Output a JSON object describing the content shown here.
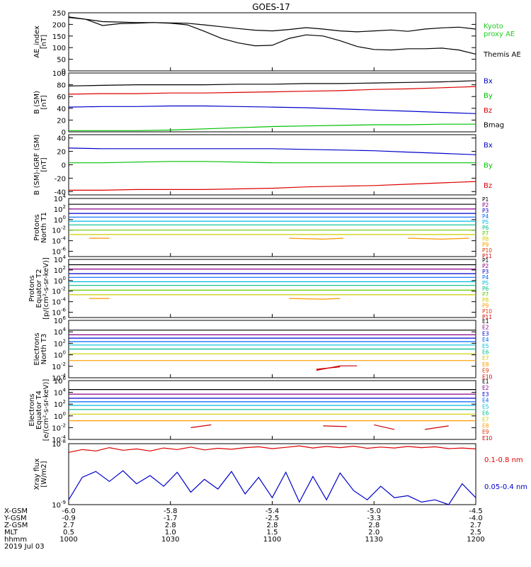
{
  "title": "GOES-17",
  "colors": {
    "black": "#000000",
    "red": "#dd0000",
    "green": "#00c000",
    "blue": "#0000cc",
    "aeKyoto": "#22cc22",
    "xrayLong": "#dd0000",
    "xrayShort": "#0000cc"
  },
  "chart_data": [
    {
      "type": "line",
      "ylabel_lines": [
        "AE_index",
        "[nT]"
      ],
      "ylim": [
        0,
        250
      ],
      "yticks": [
        "0",
        "50",
        "100",
        "150",
        "200",
        "250"
      ],
      "legend": [
        "Kyoto\nproxy AE",
        "Themis AE"
      ],
      "legend_colors": [
        "#22cc22",
        "#000000"
      ],
      "x": [
        1000,
        1005,
        1010,
        1015,
        1020,
        1025,
        1030,
        1035,
        1040,
        1045,
        1050,
        1055,
        1100,
        1105,
        1110,
        1115,
        1120,
        1125,
        1130,
        1135,
        1140,
        1145,
        1150,
        1155,
        1200
      ],
      "series": [
        {
          "name": "Kyoto proxy AE",
          "values": [
            230,
            222,
            195,
            203,
            205,
            208,
            205,
            198,
            170,
            140,
            120,
            108,
            110,
            140,
            155,
            150,
            130,
            105,
            92,
            90,
            95,
            95,
            98,
            90,
            72
          ]
        },
        {
          "name": "Themis AE",
          "values": [
            232,
            222,
            212,
            210,
            208,
            208,
            206,
            205,
            198,
            190,
            182,
            175,
            172,
            178,
            186,
            180,
            172,
            168,
            172,
            176,
            170,
            180,
            185,
            188,
            180
          ]
        }
      ]
    },
    {
      "type": "line",
      "ylabel_lines": [
        "B (SM)",
        "[nT]"
      ],
      "ylim": [
        0,
        100
      ],
      "yticks": [
        "0",
        "20",
        "40",
        "60",
        "80",
        "100"
      ],
      "legend": [
        "Bx",
        "By",
        "Bz",
        "Bmag"
      ],
      "legend_colors": [
        "#0000cc",
        "#00c000",
        "#dd0000",
        "#000000"
      ],
      "x": [
        1000,
        1010,
        1020,
        1030,
        1040,
        1050,
        1100,
        1110,
        1120,
        1130,
        1140,
        1150,
        1200
      ],
      "series": [
        {
          "name": "Bmag",
          "values": [
            78,
            79,
            80,
            80,
            80,
            81,
            81,
            82,
            82,
            83,
            84,
            85,
            87
          ]
        },
        {
          "name": "Bz",
          "values": [
            64,
            65,
            65,
            66,
            66,
            67,
            68,
            69,
            70,
            72,
            73,
            75,
            77
          ]
        },
        {
          "name": "Bx",
          "values": [
            42,
            43,
            43,
            44,
            44,
            43,
            42,
            41,
            39,
            37,
            35,
            33,
            31
          ]
        },
        {
          "name": "By",
          "values": [
            2,
            2,
            2,
            3,
            5,
            7,
            9,
            10,
            11,
            12,
            12,
            13,
            13
          ]
        }
      ]
    },
    {
      "type": "line",
      "ylabel_lines": [
        "B (SM)-IGRF (SM)",
        "[nT]"
      ],
      "ylim": [
        -45,
        45
      ],
      "yticks": [
        "-40",
        "-20",
        "0",
        "20",
        "40"
      ],
      "legend": [
        "Bx",
        "By",
        "Bz"
      ],
      "legend_colors": [
        "#0000cc",
        "#00c000",
        "#dd0000"
      ],
      "x": [
        1000,
        1010,
        1020,
        1030,
        1040,
        1050,
        1100,
        1110,
        1120,
        1130,
        1140,
        1150,
        1200
      ],
      "series": [
        {
          "name": "Bx",
          "values": [
            25,
            24,
            24,
            24,
            24,
            24,
            24,
            23,
            22,
            21,
            19,
            17,
            15
          ]
        },
        {
          "name": "By",
          "values": [
            3,
            3,
            4,
            5,
            5,
            4,
            3,
            3,
            3,
            3,
            3,
            3,
            3
          ]
        },
        {
          "name": "Bz",
          "values": [
            -38,
            -38,
            -37,
            -37,
            -37,
            -36,
            -35,
            -33,
            -32,
            -31,
            -29,
            -27,
            -25
          ]
        }
      ]
    },
    {
      "type": "line",
      "ylabel_lines": [
        "Protons",
        "North T1"
      ],
      "log": true,
      "ylim_exp": [
        -7,
        4
      ],
      "ytick_exps": [
        -6,
        -4,
        -2,
        0,
        2,
        4
      ],
      "legend": [
        "P1",
        "P2",
        "P3",
        "P4",
        "P5",
        "P6",
        "P7",
        "P8",
        "P9",
        "P10",
        "P11"
      ],
      "legend_colors": [
        "#000000",
        "#880088",
        "#0000cc",
        "#0066ff",
        "#00bbdd",
        "#00bb88",
        "#66cc00",
        "#cccc00",
        "#ff9900",
        "#dd3300",
        "#cc0000"
      ],
      "x": [
        1000,
        1200
      ],
      "series": [
        {
          "name": "P1",
          "values": [
            800,
            800
          ]
        },
        {
          "name": "P2",
          "values": [
            100,
            100
          ]
        },
        {
          "name": "P3",
          "values": [
            15,
            15
          ]
        },
        {
          "name": "P4",
          "values": [
            3,
            3
          ]
        },
        {
          "name": "P5",
          "values": [
            0.5,
            0.5
          ]
        },
        {
          "name": "P6",
          "values": [
            0.1,
            0.1
          ]
        },
        {
          "name": "P7",
          "values": [
            0.01,
            0.01
          ]
        },
        {
          "name": "P8",
          "values": [
            0.0015,
            0.0015
          ]
        }
      ],
      "fragments": [
        {
          "color": "#ff9900",
          "points": [
            [
              1006,
              0.0003
            ],
            [
              1012,
              0.0003
            ]
          ]
        },
        {
          "color": "#ff9900",
          "points": [
            [
              1105,
              0.0003
            ],
            [
              1115,
              0.0002
            ],
            [
              1121,
              0.0003
            ]
          ]
        },
        {
          "color": "#ff9900",
          "points": [
            [
              1140,
              0.0003
            ],
            [
              1150,
              0.0002
            ],
            [
              1158,
              0.0003
            ]
          ]
        }
      ]
    },
    {
      "type": "line",
      "ylabel_lines": [
        "Protons",
        "Equator T2",
        "[p/(cm²-s-sr-keV)]"
      ],
      "log": true,
      "ylim_exp": [
        -7,
        4
      ],
      "ytick_exps": [
        -6,
        -4,
        -2,
        0,
        2,
        4
      ],
      "legend": [
        "P1",
        "P2",
        "P3",
        "P4",
        "P5",
        "P6",
        "P7",
        "P8",
        "P9",
        "P10",
        "P11"
      ],
      "legend_colors": [
        "#000000",
        "#880088",
        "#0000cc",
        "#0066ff",
        "#00bbdd",
        "#00bb88",
        "#66cc00",
        "#cccc00",
        "#ff9900",
        "#dd3300",
        "#cc0000"
      ],
      "x": [
        1000,
        1200
      ],
      "series": [
        {
          "name": "P1",
          "values": [
            1000,
            1000
          ]
        },
        {
          "name": "P2",
          "values": [
            150,
            150
          ]
        },
        {
          "name": "P3",
          "values": [
            20,
            20
          ]
        },
        {
          "name": "P4",
          "values": [
            4,
            4
          ]
        },
        {
          "name": "P5",
          "values": [
            0.6,
            0.6
          ]
        },
        {
          "name": "P6",
          "values": [
            0.12,
            0.12
          ]
        },
        {
          "name": "P7",
          "values": [
            0.015,
            0.015
          ]
        },
        {
          "name": "P8",
          "values": [
            0.002,
            0.002
          ]
        }
      ],
      "fragments": [
        {
          "color": "#ff9900",
          "points": [
            [
              1006,
              0.0004
            ],
            [
              1012,
              0.0004
            ]
          ]
        },
        {
          "color": "#ff9900",
          "points": [
            [
              1105,
              0.0004
            ],
            [
              1115,
              0.0003
            ],
            [
              1120,
              0.0004
            ]
          ]
        }
      ]
    },
    {
      "type": "line",
      "ylabel_lines": [
        "Electrons",
        "North T3"
      ],
      "log": true,
      "ylim_exp": [
        -4,
        6
      ],
      "ytick_exps": [
        -4,
        -2,
        0,
        2,
        4,
        6
      ],
      "legend": [
        "E1",
        "E2",
        "E3",
        "E4",
        "E5",
        "E6",
        "E7",
        "E8",
        "E9",
        "E10"
      ],
      "legend_colors": [
        "#000000",
        "#880088",
        "#0000cc",
        "#0066ff",
        "#00bbdd",
        "#00bb88",
        "#cccc00",
        "#ff9900",
        "#dd3300",
        "#cc0000"
      ],
      "x": [
        1000,
        1200
      ],
      "series": [
        {
          "name": "E1",
          "values": [
            20000,
            20000
          ]
        },
        {
          "name": "E2",
          "values": [
            3000,
            3000
          ]
        },
        {
          "name": "E3",
          "values": [
            800,
            800
          ]
        },
        {
          "name": "E4",
          "values": [
            200,
            200
          ]
        },
        {
          "name": "E5",
          "values": [
            50,
            50
          ]
        },
        {
          "name": "E6",
          "values": [
            10,
            10
          ]
        },
        {
          "name": "E7",
          "values": [
            1.5,
            1.5
          ]
        },
        {
          "name": "E8",
          "values": [
            0.1,
            0.1
          ]
        }
      ],
      "fragments": [
        {
          "color": "#cc0000",
          "points": [
            [
              1073,
              0.003
            ],
            [
              1080,
              0.008
            ]
          ]
        },
        {
          "color": "#cc0000",
          "points": [
            [
              1113,
              0.002
            ],
            [
              1120,
              0.012
            ],
            [
              1125,
              0.012
            ]
          ]
        }
      ]
    },
    {
      "type": "line",
      "ylabel_lines": [
        "Electrons",
        "Equator T4",
        "[e/(cm²-s-sr-keV)]"
      ],
      "log": true,
      "ylim_exp": [
        -4,
        6
      ],
      "ytick_exps": [
        -4,
        -2,
        0,
        2,
        4,
        6
      ],
      "legend": [
        "E1",
        "E2",
        "E3",
        "E4",
        "E5",
        "E6",
        "E7",
        "E8",
        "E9",
        "E10"
      ],
      "legend_colors": [
        "#000000",
        "#880088",
        "#0000cc",
        "#0066ff",
        "#00bbdd",
        "#00bb88",
        "#cccc00",
        "#ff9900",
        "#dd3300",
        "#cc0000"
      ],
      "x": [
        1000,
        1200
      ],
      "series": [
        {
          "name": "E1",
          "values": [
            30000,
            30000
          ]
        },
        {
          "name": "E2",
          "values": [
            5000,
            5000
          ]
        },
        {
          "name": "E3",
          "values": [
            1000,
            1000
          ]
        },
        {
          "name": "E4",
          "values": [
            250,
            250
          ]
        },
        {
          "name": "E5",
          "values": [
            60,
            60
          ]
        },
        {
          "name": "E6",
          "values": [
            12,
            12
          ]
        },
        {
          "name": "E7",
          "values": [
            2,
            2
          ]
        },
        {
          "name": "E8",
          "values": [
            0.15,
            0.15
          ]
        }
      ],
      "fragments": [
        {
          "color": "#cc0000",
          "points": [
            [
              1036,
              0.01
            ],
            [
              1042,
              0.03
            ]
          ]
        },
        {
          "color": "#cc0000",
          "points": [
            [
              1090,
              0.03
            ],
            [
              1096,
              0.005
            ]
          ]
        },
        {
          "color": "#cc0000",
          "points": [
            [
              1115,
              0.02
            ],
            [
              1122,
              0.015
            ]
          ]
        },
        {
          "color": "#cc0000",
          "points": [
            [
              1145,
              0.005
            ],
            [
              1152,
              0.02
            ]
          ]
        }
      ]
    },
    {
      "type": "line",
      "ylabel_lines": [
        "Xray flux",
        "[W/m2]"
      ],
      "log": true,
      "ylim_exp": [
        -9,
        -8
      ],
      "ytick_exps": [
        -9,
        -8
      ],
      "legend": [
        "0.1-0.8 nm",
        "0.05-0.4 nm"
      ],
      "legend_colors": [
        "#dd0000",
        "#0000cc"
      ],
      "x": [
        1000,
        1004,
        1008,
        1012,
        1016,
        1020,
        1024,
        1028,
        1032,
        1036,
        1040,
        1044,
        1048,
        1052,
        1056,
        1100,
        1104,
        1108,
        1112,
        1116,
        1120,
        1124,
        1128,
        1132,
        1136,
        1140,
        1144,
        1148,
        1152,
        1156,
        1200
      ],
      "series": [
        {
          "name": "0.1-0.8 nm",
          "values": [
            7.2e-09,
            8e-09,
            7.6e-09,
            8.6e-09,
            7.8e-09,
            8.2e-09,
            7.6e-09,
            8.5e-09,
            8e-09,
            8.8e-09,
            7.9e-09,
            8.4e-09,
            8.1e-09,
            8.6e-09,
            8.9e-09,
            8.3e-09,
            8.7e-09,
            9.2e-09,
            8.5e-09,
            9e-09,
            8.6e-09,
            9.1e-09,
            8.4e-09,
            8.8e-09,
            8.5e-09,
            9e-09,
            8.6e-09,
            8.9e-09,
            8.3e-09,
            8.5e-09,
            8.2e-09
          ]
        },
        {
          "name": "0.05-0.4 nm",
          "values": [
            1.2e-09,
            2.8e-09,
            3.5e-09,
            2.4e-09,
            3.6e-09,
            2.2e-09,
            3e-09,
            2e-09,
            3.4e-09,
            1.6e-09,
            2.6e-09,
            1.8e-09,
            3.5e-09,
            1.5e-09,
            2.8e-09,
            1.3e-09,
            3.4e-09,
            1.1e-09,
            2.9e-09,
            1.2e-09,
            3.3e-09,
            1.7e-09,
            1.2e-09,
            2e-09,
            1.3e-09,
            1.4e-09,
            1.1e-09,
            1.2e-09,
            1e-09,
            2.2e-09,
            1.3e-09
          ]
        }
      ]
    }
  ],
  "xaxis": {
    "row_labels": [
      "X-GSM",
      "Y-GSM",
      "Z-GSM",
      "MLT",
      "hhmm",
      "2019 Jul 03"
    ],
    "ticks": [
      {
        "hhmm": "1000",
        "values": [
          "-6.0",
          "-0.9",
          "2.7",
          "0.5",
          "1000"
        ]
      },
      {
        "hhmm": "1030",
        "values": [
          "-5.8",
          "-1.7",
          "2.8",
          "1.0",
          "1030"
        ]
      },
      {
        "hhmm": "1100",
        "values": [
          "-5.4",
          "-2.5",
          "2.8",
          "1.5",
          "1100"
        ]
      },
      {
        "hhmm": "1130",
        "values": [
          "-5.0",
          "-3.3",
          "2.8",
          "2.0",
          "1130"
        ]
      },
      {
        "hhmm": "1200",
        "values": [
          "-4.5",
          "-4.0",
          "2.7",
          "2.5",
          "1200"
        ]
      }
    ]
  }
}
